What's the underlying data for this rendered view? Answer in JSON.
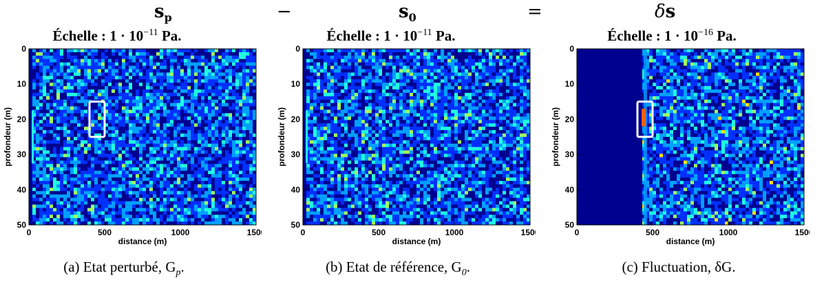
{
  "equation": {
    "left": "s",
    "left_sub": "p",
    "minus": "−",
    "middle": "s",
    "middle_sub": "0",
    "equals": "=",
    "right": "δs"
  },
  "colormap": [
    "#00008f",
    "#0030ff",
    "#00a0ff",
    "#20ffe0",
    "#a0ff60",
    "#ffe000",
    "#ff6000",
    "#b00000"
  ],
  "chart_data": [
    {
      "type": "heatmap",
      "title": "Échelle : 1 · 10^−11 Pa.",
      "title_parts": {
        "prefix": "Échelle : 1 · 10",
        "exp": "−11",
        "suffix": " Pa."
      },
      "xlabel": "distance (m)",
      "ylabel": "profondeur (m)",
      "xlim": [
        0,
        1500
      ],
      "ylim": [
        50,
        0
      ],
      "xticks": [
        "0",
        "500",
        "1000",
        "1500"
      ],
      "yticks": [
        "0",
        "10",
        "20",
        "30",
        "40",
        "50"
      ],
      "highlight_box": {
        "x": [
          400,
          500
        ],
        "y": [
          15,
          25
        ]
      },
      "dark_region_until": 25,
      "caption": "(a) Etat perturbé, G",
      "caption_sub": "p",
      "caption_end": "."
    },
    {
      "type": "heatmap",
      "title": "Échelle : 1 · 10^−11 Pa.",
      "title_parts": {
        "prefix": "Échelle : 1 · 10",
        "exp": "−11",
        "suffix": " Pa."
      },
      "xlabel": "distance (m)",
      "ylabel": "profondeur (m)",
      "xlim": [
        0,
        1500
      ],
      "ylim": [
        50,
        0
      ],
      "xticks": [
        "0",
        "500",
        "1000",
        "1500"
      ],
      "yticks": [
        "0",
        "10",
        "20",
        "30",
        "40",
        "50"
      ],
      "highlight_box": null,
      "dark_region_until": 25,
      "caption": "(b) Etat de référence, G",
      "caption_sub": "0",
      "caption_end": "."
    },
    {
      "type": "heatmap",
      "title": "Échelle : 1 · 10^−16 Pa.",
      "title_parts": {
        "prefix": "Échelle : 1 · 10",
        "exp": "−16",
        "suffix": " Pa."
      },
      "xlabel": "distance (m)",
      "ylabel": "profondeur (m)",
      "xlim": [
        0,
        1500
      ],
      "ylim": [
        50,
        0
      ],
      "xticks": [
        "0",
        "500",
        "1000",
        "1500"
      ],
      "yticks": [
        "0",
        "10",
        "20",
        "30",
        "40",
        "50"
      ],
      "highlight_box": {
        "x": [
          400,
          500
        ],
        "y": [
          15,
          25
        ]
      },
      "dark_region_until": 450,
      "caption": "(c) Fluctuation, δG",
      "caption_sub": "",
      "caption_end": "."
    }
  ]
}
